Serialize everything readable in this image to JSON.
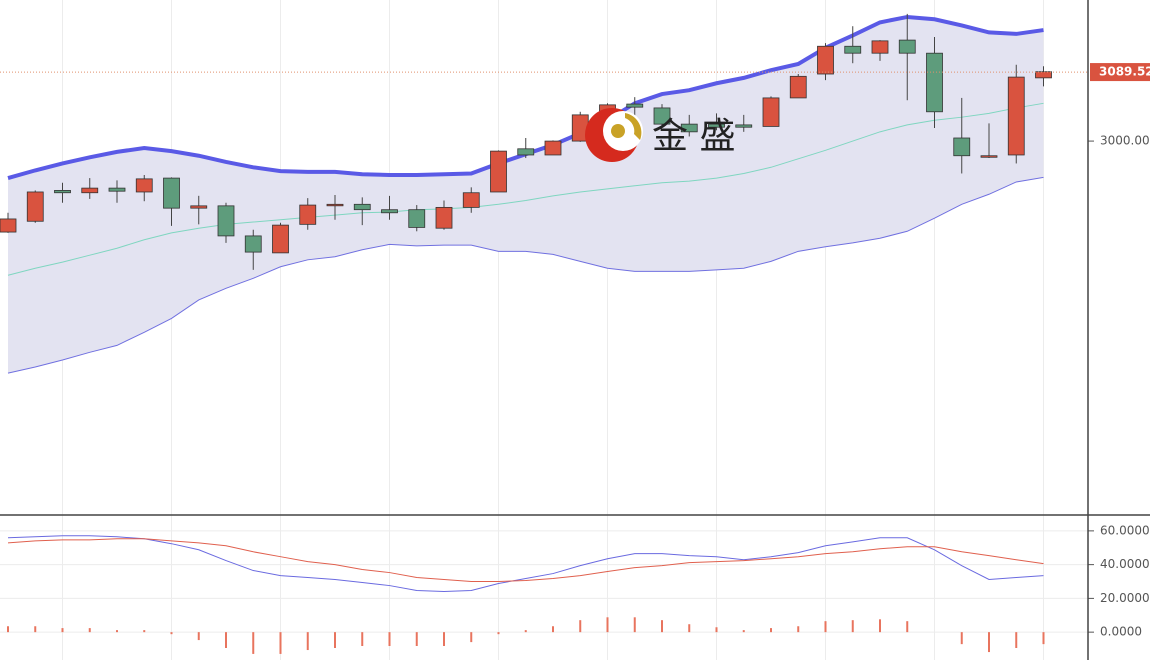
{
  "chart_data": [
    {
      "type": "candlestick",
      "categories": [
        null,
        null,
        null,
        null,
        null,
        null,
        null,
        null,
        null,
        null,
        null,
        null,
        null,
        null,
        null,
        null,
        null,
        null,
        null,
        null,
        null,
        null,
        null,
        null,
        null,
        null,
        null,
        null,
        null,
        null,
        null,
        null,
        null,
        null,
        null,
        null,
        null,
        null,
        null
      ],
      "open": [
        2882,
        2896,
        2936,
        2933,
        2939,
        2934,
        2952,
        2913,
        2916,
        2877,
        2855,
        2892,
        2917,
        2918,
        2911,
        2911,
        2887,
        2914,
        2934,
        2990,
        2982,
        3000,
        3034,
        3048,
        3043,
        3022,
        3022,
        3021,
        3019,
        3056,
        3087,
        3123,
        3114,
        3131,
        3114,
        3004,
        2979,
        2982,
        3082
      ],
      "high": [
        2907,
        2936,
        2946,
        2952,
        2949,
        2956,
        2953,
        2929,
        2920,
        2885,
        2894,
        2926,
        2930,
        2927,
        2929,
        2917,
        2923,
        2940,
        2988,
        3004,
        3001,
        3038,
        3049,
        3057,
        3048,
        3034,
        3036,
        3034,
        3058,
        3087,
        3127,
        3149,
        3131,
        3165,
        3135,
        3056,
        3023,
        3099,
        3097
      ],
      "low": [
        2881,
        2894,
        2920,
        2925,
        2920,
        2922,
        2890,
        2892,
        2868,
        2833,
        2855,
        2885,
        2898,
        2891,
        2898,
        2883,
        2885,
        2907,
        2934,
        2978,
        2982,
        2999,
        3030,
        3027,
        3017,
        3006,
        3014,
        3012,
        3019,
        3056,
        3079,
        3101,
        3104,
        3053,
        3017,
        2958,
        2978,
        2971,
        3071
      ],
      "close": [
        2899,
        2934,
        2933,
        2939,
        2935,
        2951,
        2913,
        2916,
        2877,
        2856,
        2891,
        2917,
        2918,
        2911,
        2907,
        2888,
        2914,
        2933,
        2987,
        2982,
        3000,
        3034,
        3047,
        3044,
        3022,
        3012,
        3018,
        3018,
        3056,
        3084,
        3123,
        3114,
        3130,
        3114,
        3038,
        2981,
        2981,
        3083,
        3090
      ],
      "up_color": "#d9533f",
      "down_color": "#5e9c7c",
      "series": [
        {
          "color": "#5a5ae6",
          "values": [
            2952,
            2962,
            2971,
            2979,
            2986,
            2991,
            2987,
            2981,
            2973,
            2966,
            2961,
            2960,
            2960,
            2957,
            2956,
            2956,
            2957,
            2958,
            2971,
            2983,
            2995,
            3010,
            3027,
            3049,
            3061,
            3066,
            3075,
            3082,
            3092,
            3100,
            3121,
            3137,
            3154,
            3161,
            3158,
            3150,
            3141,
            3139,
            3144
          ]
        },
        {
          "color": "#7fd6c0",
          "values": [
            2826,
            2835,
            2843,
            2852,
            2861,
            2872,
            2881,
            2887,
            2892,
            2895,
            2898,
            2901,
            2904,
            2907,
            2908,
            2911,
            2912,
            2914,
            2918,
            2923,
            2929,
            2934,
            2938,
            2942,
            2946,
            2948,
            2952,
            2958,
            2966,
            2977,
            2988,
            3000,
            3012,
            3021,
            3027,
            3031,
            3036,
            3043,
            3049
          ]
        },
        {
          "color": "#7070e0",
          "values": [
            2699,
            2707,
            2716,
            2726,
            2735,
            2752,
            2770,
            2794,
            2809,
            2822,
            2837,
            2846,
            2850,
            2859,
            2866,
            2864,
            2865,
            2865,
            2857,
            2857,
            2853,
            2844,
            2835,
            2831,
            2831,
            2831,
            2833,
            2835,
            2844,
            2857,
            2863,
            2868,
            2874,
            2883,
            2900,
            2918,
            2931,
            2947,
            2953
          ]
        }
      ],
      "ylim": [
        2515,
        3183
      ],
      "yticks": [
        {
          "value": 3000,
          "label": "3000.00"
        }
      ],
      "last_price": 3089.52,
      "watermark": "金 盛"
    },
    {
      "type": "line",
      "categories": [
        null,
        null,
        null,
        null,
        null,
        null,
        null,
        null,
        null,
        null,
        null,
        null,
        null,
        null,
        null,
        null,
        null,
        null,
        null,
        null,
        null,
        null,
        null,
        null,
        null,
        null,
        null,
        null,
        null,
        null,
        null,
        null,
        null,
        null,
        null,
        null,
        null,
        null,
        null
      ],
      "series": [
        {
          "color": "#6a6ae0",
          "values": [
            55.9,
            56.5,
            57.1,
            57.1,
            56.5,
            55.3,
            52.4,
            48.8,
            42.4,
            36.5,
            33.5,
            32.4,
            31.2,
            29.4,
            27.6,
            24.7,
            24.1,
            24.7,
            28.8,
            31.8,
            34.7,
            39.4,
            43.5,
            46.5,
            46.5,
            45.3,
            44.7,
            42.9,
            44.7,
            47.1,
            51.2,
            53.5,
            55.9,
            55.9,
            48.8,
            39.4,
            31.2,
            32.4,
            33.5
          ]
        },
        {
          "color": "#e0604e",
          "values": [
            52.9,
            54.1,
            54.7,
            54.7,
            55.3,
            55.3,
            54.1,
            52.9,
            51.2,
            47.6,
            44.7,
            41.8,
            40,
            37.1,
            35.3,
            32.4,
            31.2,
            30,
            30,
            30.6,
            31.8,
            33.5,
            35.9,
            38.2,
            39.4,
            41.2,
            41.8,
            42.4,
            43.5,
            44.7,
            46.5,
            47.6,
            49.4,
            50.6,
            50.6,
            47.6,
            45.3,
            42.9,
            40.6
          ]
        }
      ],
      "bars": {
        "color": "#e8745e",
        "values": [
          3.5,
          3.5,
          2.4,
          2.4,
          1.2,
          1.2,
          -1.2,
          -4.7,
          -9.4,
          -12.9,
          -12.9,
          -10.6,
          -9.4,
          -8.2,
          -8.2,
          -8.2,
          -8.2,
          -5.9,
          -1.2,
          1.2,
          3.5,
          7.1,
          8.8,
          8.8,
          7.1,
          4.7,
          2.9,
          1.2,
          2.4,
          3.5,
          6.5,
          7.1,
          7.6,
          6.5,
          0,
          -7.1,
          -11.8,
          -9.4,
          -7.1
        ]
      },
      "ylim": [
        -16.5,
        69.4
      ],
      "yticks": [
        {
          "value": 60,
          "label": "60.0000"
        },
        {
          "value": 40,
          "label": "40.0000"
        },
        {
          "value": 20,
          "label": "20.0000"
        },
        {
          "value": 0,
          "label": "0.0000"
        }
      ]
    }
  ]
}
